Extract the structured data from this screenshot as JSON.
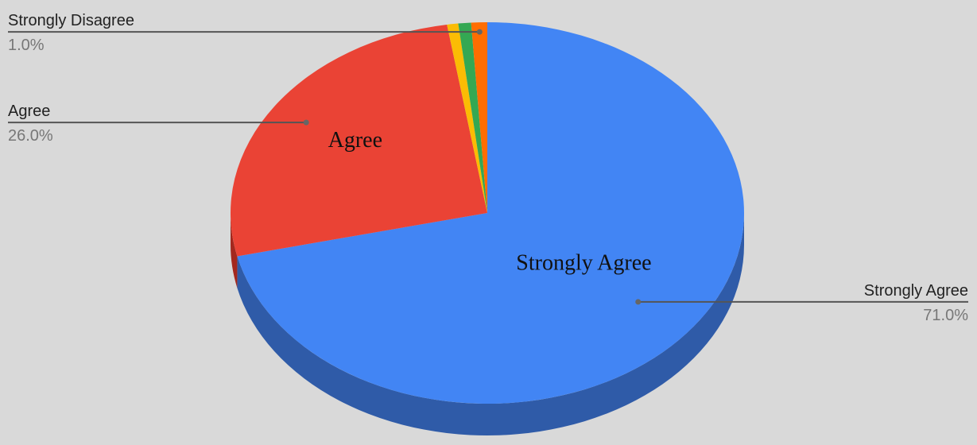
{
  "chart_data": {
    "type": "pie",
    "style": "3d",
    "title": "",
    "slices": [
      {
        "label": "Strongly Agree",
        "value": 71.0,
        "percent_text": "71.0%",
        "color": "#4285f4",
        "side_color": "#2f5ba8",
        "inside_label": "Strongly Agree",
        "callout": true
      },
      {
        "label": "Agree",
        "value": 26.0,
        "percent_text": "26.0%",
        "color": "#ea4335",
        "side_color": "#a4281e",
        "inside_label": "Agree",
        "callout": true
      },
      {
        "label": "",
        "value": 0.7,
        "color": "#fbbc04",
        "side_color": "#b78800",
        "callout": false
      },
      {
        "label": "",
        "value": 0.8,
        "color": "#34a853",
        "side_color": "#23753a",
        "callout": false
      },
      {
        "label": "Strongly Disagree",
        "value": 1.0,
        "percent_text": "1.0%",
        "color": "#ff6d01",
        "side_color": "#b84d00",
        "callout": true
      }
    ],
    "legend": "none",
    "background": "#d9d9d9"
  }
}
